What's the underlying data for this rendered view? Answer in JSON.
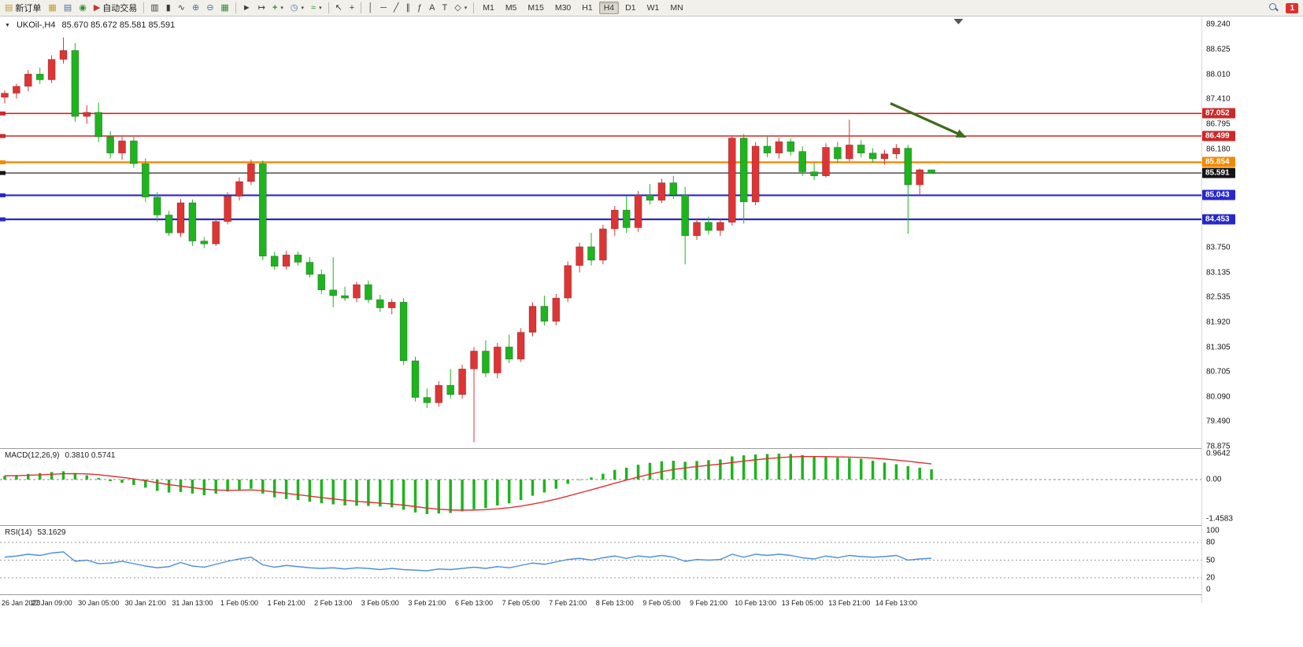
{
  "toolbar": {
    "new_order_label": "新订单",
    "auto_trading_label": "自动交易",
    "timeframes": [
      "M1",
      "M5",
      "M15",
      "M30",
      "H1",
      "H4",
      "D1",
      "W1",
      "MN"
    ],
    "active_timeframe": "H4",
    "notification_badge": "1"
  },
  "icons": {
    "title_caret": "▼",
    "new_order": "▤",
    "market_watch": "▦",
    "data_window": "▤",
    "navigator": "◉",
    "auto_trading": "▶",
    "bars_chart": "▥",
    "candles_chart": "▮",
    "line_chart": "∿",
    "zoom_in": "⊕",
    "zoom_out": "⊖",
    "tile_windows": "▦",
    "auto_scroll": "►",
    "chart_shift": "↦",
    "new_chart": "+",
    "periods": "◷",
    "indicators": "≈",
    "cursor": "↖",
    "crosshair": "+",
    "vline": "│",
    "hline": "─",
    "trendline": "╱",
    "channel": "∥",
    "fibonacci": "ƒ",
    "text_tool": "A",
    "label_tool": "T",
    "shapes": "◇",
    "caret": "▾"
  },
  "chart": {
    "symbol_period": "UKOil-,H4",
    "ohlc": "85.670 85.672 85.581 85.591"
  },
  "chart_data": {
    "type": "candlestick",
    "title": "UKOil-,H4 85.670 85.672 85.581 85.591",
    "up_color": "#df3434",
    "down_color": "#1eb41e",
    "price_axis": {
      "max": 89.24,
      "min": 78.875,
      "labels": [
        "89.240",
        "88.625",
        "88.010",
        "87.410",
        "86.795",
        "86.180",
        "83.750",
        "83.135",
        "82.535",
        "81.920",
        "81.305",
        "80.705",
        "80.090",
        "79.490",
        "78.875"
      ]
    },
    "price_lines": [
      {
        "price": 87.052,
        "label": "87.052",
        "color": "#cc2929",
        "width": 1.6
      },
      {
        "price": 86.499,
        "label": "86.499",
        "color": "#cc2929",
        "width": 1.6
      },
      {
        "price": 85.854,
        "label": "85.854",
        "color": "#f28a00",
        "width": 2.4
      },
      {
        "price": 85.591,
        "label": "85.591",
        "color": "#141414",
        "width": 1.2
      },
      {
        "price": 85.043,
        "label": "85.043",
        "color": "#2727cc",
        "width": 2.2
      },
      {
        "price": 84.453,
        "label": "84.453",
        "color": "#2727cc",
        "width": 2.2
      }
    ],
    "arrow": {
      "color": "#3f6b1f",
      "from_index": 75.5,
      "from_price": 87.3,
      "to_index": 82.0,
      "to_price": 86.46
    },
    "shift_marker_index": 81.3,
    "time_labels": [
      "26 Jan 2023",
      "27 Jan 09:00",
      "30 Jan 05:00",
      "30 Jan 21:00",
      "31 Jan 13:00",
      "1 Feb 05:00",
      "1 Feb 21:00",
      "2 Feb 13:00",
      "3 Feb 05:00",
      "3 Feb 21:00",
      "6 Feb 13:00",
      "7 Feb 05:00",
      "7 Feb 21:00",
      "8 Feb 13:00",
      "9 Feb 05:00",
      "9 Feb 21:00",
      "10 Feb 13:00",
      "13 Feb 05:00",
      "13 Feb 21:00",
      "14 Feb 13:00"
    ],
    "candles": [
      [
        87.45,
        87.62,
        87.3,
        87.55
      ],
      [
        87.55,
        87.78,
        87.42,
        87.72
      ],
      [
        87.72,
        88.12,
        87.6,
        88.02
      ],
      [
        88.02,
        88.18,
        87.78,
        87.88
      ],
      [
        87.88,
        88.48,
        87.8,
        88.38
      ],
      [
        88.38,
        88.92,
        88.28,
        88.6
      ],
      [
        88.6,
        88.78,
        86.85,
        86.98
      ],
      [
        86.98,
        87.25,
        86.8,
        87.08
      ],
      [
        87.08,
        87.32,
        86.35,
        86.48
      ],
      [
        86.48,
        86.62,
        85.95,
        86.08
      ],
      [
        86.08,
        86.48,
        85.92,
        86.38
      ],
      [
        86.38,
        86.48,
        85.72,
        85.82
      ],
      [
        85.82,
        85.95,
        84.88,
        85.0
      ],
      [
        85.0,
        85.12,
        84.4,
        84.56
      ],
      [
        84.56,
        84.66,
        84.05,
        84.12
      ],
      [
        84.12,
        84.95,
        84.02,
        84.86
      ],
      [
        84.86,
        84.94,
        83.8,
        83.92
      ],
      [
        83.92,
        84.02,
        83.75,
        83.85
      ],
      [
        83.85,
        84.48,
        83.8,
        84.4
      ],
      [
        84.4,
        85.12,
        84.33,
        85.02
      ],
      [
        85.02,
        85.48,
        84.92,
        85.38
      ],
      [
        85.38,
        85.92,
        85.3,
        85.82
      ],
      [
        85.82,
        85.9,
        83.45,
        83.55
      ],
      [
        83.55,
        83.66,
        83.22,
        83.3
      ],
      [
        83.3,
        83.68,
        83.22,
        83.58
      ],
      [
        83.58,
        83.66,
        83.32,
        83.4
      ],
      [
        83.4,
        83.52,
        83.02,
        83.1
      ],
      [
        83.1,
        83.22,
        82.62,
        82.72
      ],
      [
        82.72,
        83.52,
        82.3,
        82.58
      ],
      [
        82.58,
        82.8,
        82.45,
        82.52
      ],
      [
        82.52,
        82.92,
        82.42,
        82.85
      ],
      [
        82.85,
        82.95,
        82.4,
        82.48
      ],
      [
        82.48,
        82.6,
        82.18,
        82.28
      ],
      [
        82.28,
        82.5,
        82.12,
        82.42
      ],
      [
        82.42,
        82.52,
        80.88,
        80.98
      ],
      [
        80.98,
        81.08,
        79.98,
        80.08
      ],
      [
        80.08,
        80.3,
        79.82,
        79.95
      ],
      [
        79.95,
        80.48,
        79.85,
        80.38
      ],
      [
        80.38,
        80.78,
        80.05,
        80.15
      ],
      [
        80.15,
        80.88,
        80.05,
        80.78
      ],
      [
        80.78,
        81.32,
        78.98,
        81.22
      ],
      [
        81.22,
        81.48,
        80.58,
        80.68
      ],
      [
        80.68,
        81.42,
        80.55,
        81.32
      ],
      [
        81.32,
        81.62,
        80.92,
        81.02
      ],
      [
        81.02,
        81.78,
        80.95,
        81.68
      ],
      [
        81.68,
        82.42,
        81.58,
        82.32
      ],
      [
        82.32,
        82.58,
        81.85,
        81.95
      ],
      [
        81.95,
        82.62,
        81.85,
        82.52
      ],
      [
        82.52,
        83.42,
        82.42,
        83.32
      ],
      [
        83.32,
        83.88,
        83.15,
        83.78
      ],
      [
        83.78,
        84.12,
        83.32,
        83.45
      ],
      [
        83.45,
        84.32,
        83.35,
        84.22
      ],
      [
        84.22,
        84.78,
        84.05,
        84.68
      ],
      [
        84.68,
        85.02,
        84.12,
        84.25
      ],
      [
        84.25,
        85.15,
        84.15,
        85.05
      ],
      [
        85.05,
        85.32,
        84.82,
        84.92
      ],
      [
        84.92,
        85.45,
        84.85,
        85.35
      ],
      [
        85.35,
        85.52,
        84.95,
        85.05
      ],
      [
        85.05,
        85.25,
        83.35,
        84.05
      ],
      [
        84.05,
        84.48,
        83.95,
        84.38
      ],
      [
        84.38,
        84.52,
        84.08,
        84.18
      ],
      [
        84.18,
        84.46,
        84.05,
        84.38
      ],
      [
        84.38,
        86.52,
        84.3,
        86.45
      ],
      [
        86.45,
        86.55,
        84.35,
        84.88
      ],
      [
        84.88,
        86.35,
        84.8,
        86.25
      ],
      [
        86.25,
        86.5,
        85.98,
        86.08
      ],
      [
        86.08,
        86.46,
        85.95,
        86.36
      ],
      [
        86.36,
        86.44,
        86.02,
        86.12
      ],
      [
        86.12,
        86.24,
        85.52,
        85.62
      ],
      [
        85.62,
        85.84,
        85.42,
        85.52
      ],
      [
        85.52,
        86.32,
        85.48,
        86.22
      ],
      [
        86.22,
        86.36,
        85.84,
        85.94
      ],
      [
        85.94,
        86.9,
        85.88,
        86.28
      ],
      [
        86.28,
        86.4,
        85.98,
        86.08
      ],
      [
        86.08,
        86.2,
        85.84,
        85.94
      ],
      [
        85.94,
        86.16,
        85.8,
        86.06
      ],
      [
        86.06,
        86.3,
        85.94,
        86.2
      ],
      [
        86.2,
        86.28,
        84.1,
        85.3
      ],
      [
        85.3,
        85.7,
        85.05,
        85.67
      ],
      [
        85.67,
        85.672,
        85.581,
        85.591
      ]
    ],
    "macd": {
      "label": "MACD(12,26,9)",
      "values_label": "0.3810 0.5741",
      "hist_color": "#1eb41e",
      "signal_color": "#e03030",
      "axis": {
        "max": 0.9642,
        "min": -1.4583,
        "labels": [
          "0.9642",
          "0.00",
          "-1.4583"
        ]
      },
      "histogram": [
        0.14,
        0.17,
        0.21,
        0.24,
        0.28,
        0.31,
        0.24,
        0.16,
        0.06,
        -0.06,
        -0.12,
        -0.2,
        -0.3,
        -0.42,
        -0.48,
        -0.46,
        -0.52,
        -0.58,
        -0.52,
        -0.44,
        -0.38,
        -0.34,
        -0.52,
        -0.66,
        -0.72,
        -0.76,
        -0.82,
        -0.88,
        -0.92,
        -0.96,
        -0.97,
        -0.98,
        -1.0,
        -1.03,
        -1.12,
        -1.22,
        -1.28,
        -1.26,
        -1.24,
        -1.18,
        -1.1,
        -1.06,
        -0.96,
        -0.88,
        -0.76,
        -0.6,
        -0.48,
        -0.34,
        -0.16,
        -0.02,
        0.08,
        0.22,
        0.36,
        0.44,
        0.55,
        0.62,
        0.68,
        0.7,
        0.66,
        0.69,
        0.72,
        0.75,
        0.86,
        0.9,
        0.93,
        0.95,
        0.96,
        0.95,
        0.91,
        0.86,
        0.83,
        0.81,
        0.8,
        0.77,
        0.7,
        0.63,
        0.57,
        0.5,
        0.44,
        0.38
      ]
    },
    "rsi": {
      "label": "RSI(14)",
      "value_label": "53.1629",
      "line_color": "#4d8fdc",
      "levels": [
        80,
        50,
        20
      ],
      "axis_labels": [
        "100",
        "80",
        "50",
        "20",
        "0"
      ],
      "values": [
        55,
        57,
        60,
        58,
        62,
        64,
        48,
        50,
        44,
        45,
        48,
        44,
        40,
        37,
        39,
        46,
        40,
        38,
        43,
        48,
        52,
        55,
        42,
        38,
        41,
        39,
        37,
        36,
        37,
        35,
        37,
        36,
        34,
        36,
        34,
        33,
        32,
        35,
        34,
        36,
        38,
        36,
        39,
        37,
        41,
        45,
        43,
        47,
        51,
        53,
        50,
        54,
        57,
        53,
        57,
        55,
        58,
        55,
        48,
        51,
        50,
        51,
        60,
        55,
        60,
        58,
        60,
        58,
        54,
        52,
        57,
        54,
        58,
        56,
        55,
        56,
        58,
        50,
        52,
        53.16
      ]
    }
  }
}
